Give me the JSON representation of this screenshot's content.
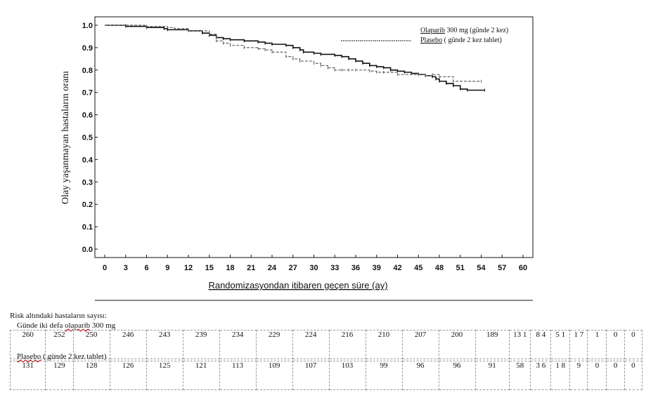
{
  "chart_data": {
    "type": "line",
    "title": "",
    "xlabel": "Randomizasyondan itibaren geçen süre (ay)",
    "ylabel": "Olay yaşanmayan hastaların oranı",
    "xlim": [
      0,
      60
    ],
    "ylim": [
      0.0,
      1.0
    ],
    "xticks": [
      "0",
      "3",
      "6",
      "9",
      "12",
      "15",
      "18",
      "21",
      "24",
      "27",
      "30",
      "33",
      "36",
      "39",
      "42",
      "45",
      "48",
      "51",
      "54",
      "57",
      "60"
    ],
    "yticks": [
      "0.0",
      "0.1",
      "0.2",
      "0.3",
      "0.4",
      "0.5",
      "0.6",
      "0.7",
      "0.8",
      "0.9",
      "1.0"
    ],
    "grid": false,
    "legend_position": "top-right",
    "series": [
      {
        "name": "Olaparib 300 mg (günde 2 kez)",
        "style": "solid",
        "color": "#111111",
        "x": [
          0,
          3,
          6,
          8.5,
          9,
          12,
          14,
          15,
          16,
          17,
          18,
          20,
          22,
          23,
          24,
          26,
          27,
          28,
          28.5,
          30,
          31,
          33,
          34,
          35,
          36,
          37,
          38,
          39,
          40,
          41,
          42,
          43,
          44,
          45,
          46,
          47,
          47.5,
          48,
          49,
          50,
          51,
          52,
          54.5
        ],
        "y": [
          1.0,
          0.995,
          0.99,
          0.985,
          0.98,
          0.975,
          0.965,
          0.955,
          0.945,
          0.94,
          0.935,
          0.93,
          0.925,
          0.92,
          0.915,
          0.91,
          0.9,
          0.89,
          0.88,
          0.875,
          0.87,
          0.865,
          0.86,
          0.85,
          0.84,
          0.83,
          0.82,
          0.815,
          0.81,
          0.8,
          0.795,
          0.79,
          0.785,
          0.78,
          0.775,
          0.77,
          0.76,
          0.75,
          0.74,
          0.73,
          0.715,
          0.71,
          0.71
        ]
      },
      {
        "name": "Plasebo ( günde 2 kez tablet)",
        "style": "dashed",
        "color": "#666666",
        "x": [
          0,
          3,
          6,
          9,
          10,
          12,
          15,
          16,
          17,
          18,
          20,
          22,
          23,
          24,
          26,
          27,
          28,
          30,
          31,
          32,
          33,
          34,
          35,
          36,
          38,
          39,
          40,
          42,
          45,
          46,
          47,
          48,
          50,
          54
        ],
        "y": [
          1.0,
          1.0,
          0.995,
          0.99,
          0.985,
          0.975,
          0.96,
          0.93,
          0.92,
          0.91,
          0.9,
          0.895,
          0.89,
          0.88,
          0.86,
          0.85,
          0.84,
          0.83,
          0.82,
          0.81,
          0.8,
          0.8,
          0.8,
          0.8,
          0.795,
          0.79,
          0.79,
          0.78,
          0.78,
          0.775,
          0.78,
          0.77,
          0.75,
          0.75
        ]
      }
    ]
  },
  "legend": {
    "olaparib_name": "Olaparib",
    "olaparib_rest": " 300 mg (günde 2 kez)",
    "placebo_name": "Plasebo",
    "placebo_rest": " ( günde 2 kez tablet)"
  },
  "risk_table": {
    "title": "Risk altındaki hastaların sayısı:",
    "group1_prefix": "Günde iki defa ",
    "group1_drug": "olaparib",
    "group1_suffix": " 300 mg",
    "group1_values": [
      "260",
      "252",
      "250",
      "246",
      "243",
      "239",
      "234",
      "229",
      "224",
      "216",
      "210",
      "207",
      "200",
      "189",
      "13 1",
      "8 4",
      "5 1",
      "1 7",
      "1",
      "0",
      "0"
    ],
    "group2_drug": "Plasebo",
    "group2_suffix": " ( günde 2 kez tablet)",
    "group2_values": [
      "131",
      "129",
      "128",
      "126",
      "125",
      "121",
      "113",
      "109",
      "107",
      "103",
      "99",
      "96",
      "96",
      "91",
      "58",
      "3 6",
      "1 8",
      "9",
      "0",
      "0",
      "0"
    ]
  }
}
